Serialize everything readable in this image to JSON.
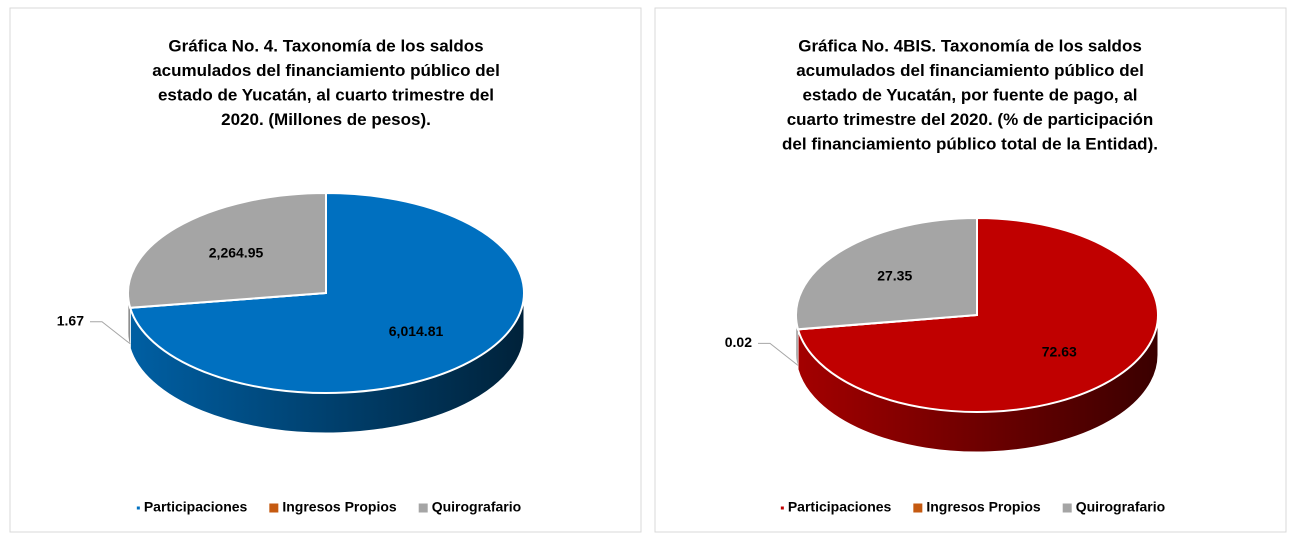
{
  "chart_data": [
    {
      "type": "pie",
      "title": [
        "Gráfica No. 4. Taxonomía de los saldos",
        "acumulados del financiamiento público del",
        "estado de Yucatán, al cuarto trimestre del",
        "2020. (Millones de pesos)."
      ],
      "categories": [
        "Participaciones",
        "Ingresos Propios",
        "Quirografario"
      ],
      "values": [
        6014.81,
        1.67,
        2264.95
      ],
      "value_labels": [
        "6,014.81",
        "1.67",
        "2,264.95"
      ],
      "colors": [
        "#0070c0",
        "#c55a11",
        "#a5a5a5"
      ]
    },
    {
      "type": "pie",
      "title": [
        "Gráfica No. 4BIS. Taxonomía de los saldos",
        "acumulados del financiamiento público del",
        "estado de Yucatán, por fuente de pago, al",
        "cuarto trimestre del 2020. (% de participación",
        "del financiamiento público total de la Entidad)."
      ],
      "categories": [
        "Participaciones",
        "Ingresos Propios",
        "Quirografario"
      ],
      "values": [
        72.63,
        0.02,
        27.35
      ],
      "value_labels": [
        "72.63",
        "0.02",
        "27.35"
      ],
      "colors": [
        "#c00000",
        "#c55a11",
        "#a5a5a5"
      ]
    }
  ]
}
